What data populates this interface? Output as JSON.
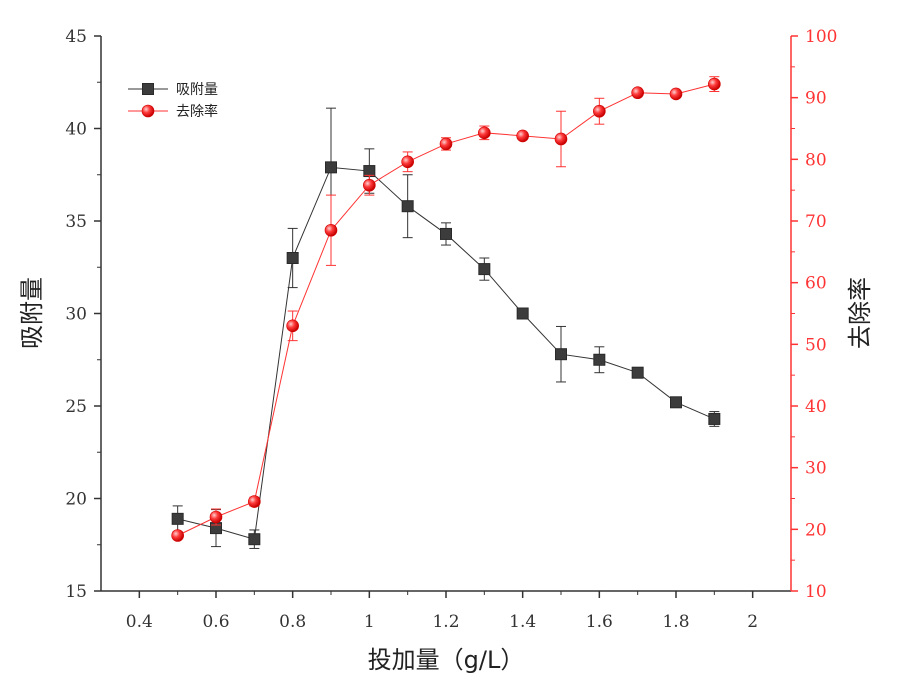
{
  "chart_data": {
    "type": "line",
    "title": "",
    "xlabel": "投加量（g/L）",
    "ylabel_left": "吸附量",
    "ylabel_right": "去除率",
    "xlim": [
      0.3,
      2.1
    ],
    "ylim_left": [
      15,
      45
    ],
    "ylim_right": [
      10,
      100
    ],
    "x_ticks": [
      0.4,
      0.6,
      0.8,
      1.0,
      1.2,
      1.4,
      1.6,
      1.8,
      2.0
    ],
    "x_tick_labels": [
      "0.4",
      "0.6",
      "0.8",
      "1",
      "1.2",
      "1.4",
      "1.6",
      "1.8",
      "2"
    ],
    "y_left_ticks": [
      15,
      20,
      25,
      30,
      35,
      40,
      45
    ],
    "y_left_tick_labels": [
      "15",
      "20",
      "25",
      "30",
      "35",
      "40",
      "45"
    ],
    "y_right_ticks": [
      10,
      20,
      30,
      40,
      50,
      60,
      70,
      80,
      90,
      100
    ],
    "y_right_tick_labels": [
      "10",
      "20",
      "30",
      "40",
      "50",
      "60",
      "70",
      "80",
      "90",
      "100"
    ],
    "legend_position": "top-left",
    "grid": false,
    "colors": {
      "adsorption": "#333333",
      "removal": "#ff3333",
      "right_axis": "#ff3333",
      "left_axis": "#333333"
    },
    "series": [
      {
        "name": "吸附量",
        "axis": "left",
        "marker": "square",
        "x": [
          0.5,
          0.6,
          0.7,
          0.8,
          0.9,
          1.0,
          1.1,
          1.2,
          1.3,
          1.4,
          1.5,
          1.6,
          1.7,
          1.8,
          1.9
        ],
        "values": [
          18.9,
          18.4,
          17.8,
          33.0,
          37.9,
          37.7,
          35.8,
          34.3,
          32.4,
          30.0,
          27.8,
          27.5,
          26.8,
          25.2,
          24.3
        ],
        "errors": [
          0.7,
          1.0,
          0.5,
          1.6,
          3.2,
          1.2,
          1.7,
          0.6,
          0.6,
          0.2,
          1.5,
          0.7,
          0.2,
          0.2,
          0.4
        ]
      },
      {
        "name": "去除率",
        "axis": "right",
        "marker": "circle",
        "x": [
          0.5,
          0.6,
          0.7,
          0.8,
          0.9,
          1.0,
          1.1,
          1.2,
          1.3,
          1.4,
          1.5,
          1.6,
          1.7,
          1.8,
          1.9
        ],
        "values": [
          19.0,
          22.0,
          24.5,
          53.0,
          68.5,
          75.8,
          79.6,
          82.5,
          84.3,
          83.8,
          83.3,
          87.8,
          90.8,
          90.6,
          92.2
        ],
        "errors": [
          0.3,
          1.3,
          0.7,
          2.4,
          5.7,
          1.6,
          1.6,
          1.0,
          1.1,
          0.3,
          4.5,
          2.1,
          0.3,
          0.3,
          1.2
        ]
      }
    ]
  }
}
